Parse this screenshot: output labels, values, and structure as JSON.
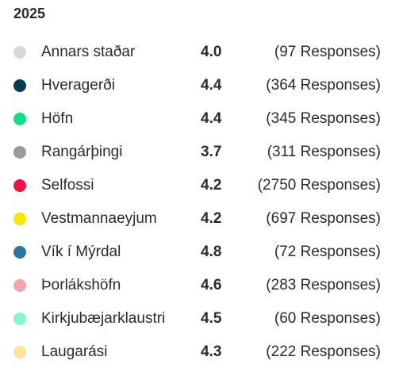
{
  "legend": {
    "year": "2025",
    "items": [
      {
        "label": "Annars staðar",
        "score": "4.0",
        "responses": "(97 Responses)",
        "color": "#d9d9d9"
      },
      {
        "label": "Hveragerði",
        "score": "4.4",
        "responses": "(364 Responses)",
        "color": "#083a52"
      },
      {
        "label": "Höfn",
        "score": "4.4",
        "responses": "(345 Responses)",
        "color": "#10dc8a"
      },
      {
        "label": "Rangárþingi",
        "score": "3.7",
        "responses": "(311 Responses)",
        "color": "#9a9a9a"
      },
      {
        "label": "Selfossi",
        "score": "4.2",
        "responses": "(2750 Responses)",
        "color": "#f01446"
      },
      {
        "label": "Vestmannaeyjum",
        "score": "4.2",
        "responses": "(697 Responses)",
        "color": "#f7e600"
      },
      {
        "label": "Vík í Mýrdal",
        "score": "4.8",
        "responses": "(72 Responses)",
        "color": "#2e76a2"
      },
      {
        "label": "Þorlákshöfn",
        "score": "4.6",
        "responses": "(283 Responses)",
        "color": "#f5a3ad"
      },
      {
        "label": "Kirkjubæjarklaustri",
        "score": "4.5",
        "responses": "(60 Responses)",
        "color": "#84f7cf"
      },
      {
        "label": "Laugarási",
        "score": "4.3",
        "responses": "(222 Responses)",
        "color": "#fde49a"
      }
    ]
  }
}
